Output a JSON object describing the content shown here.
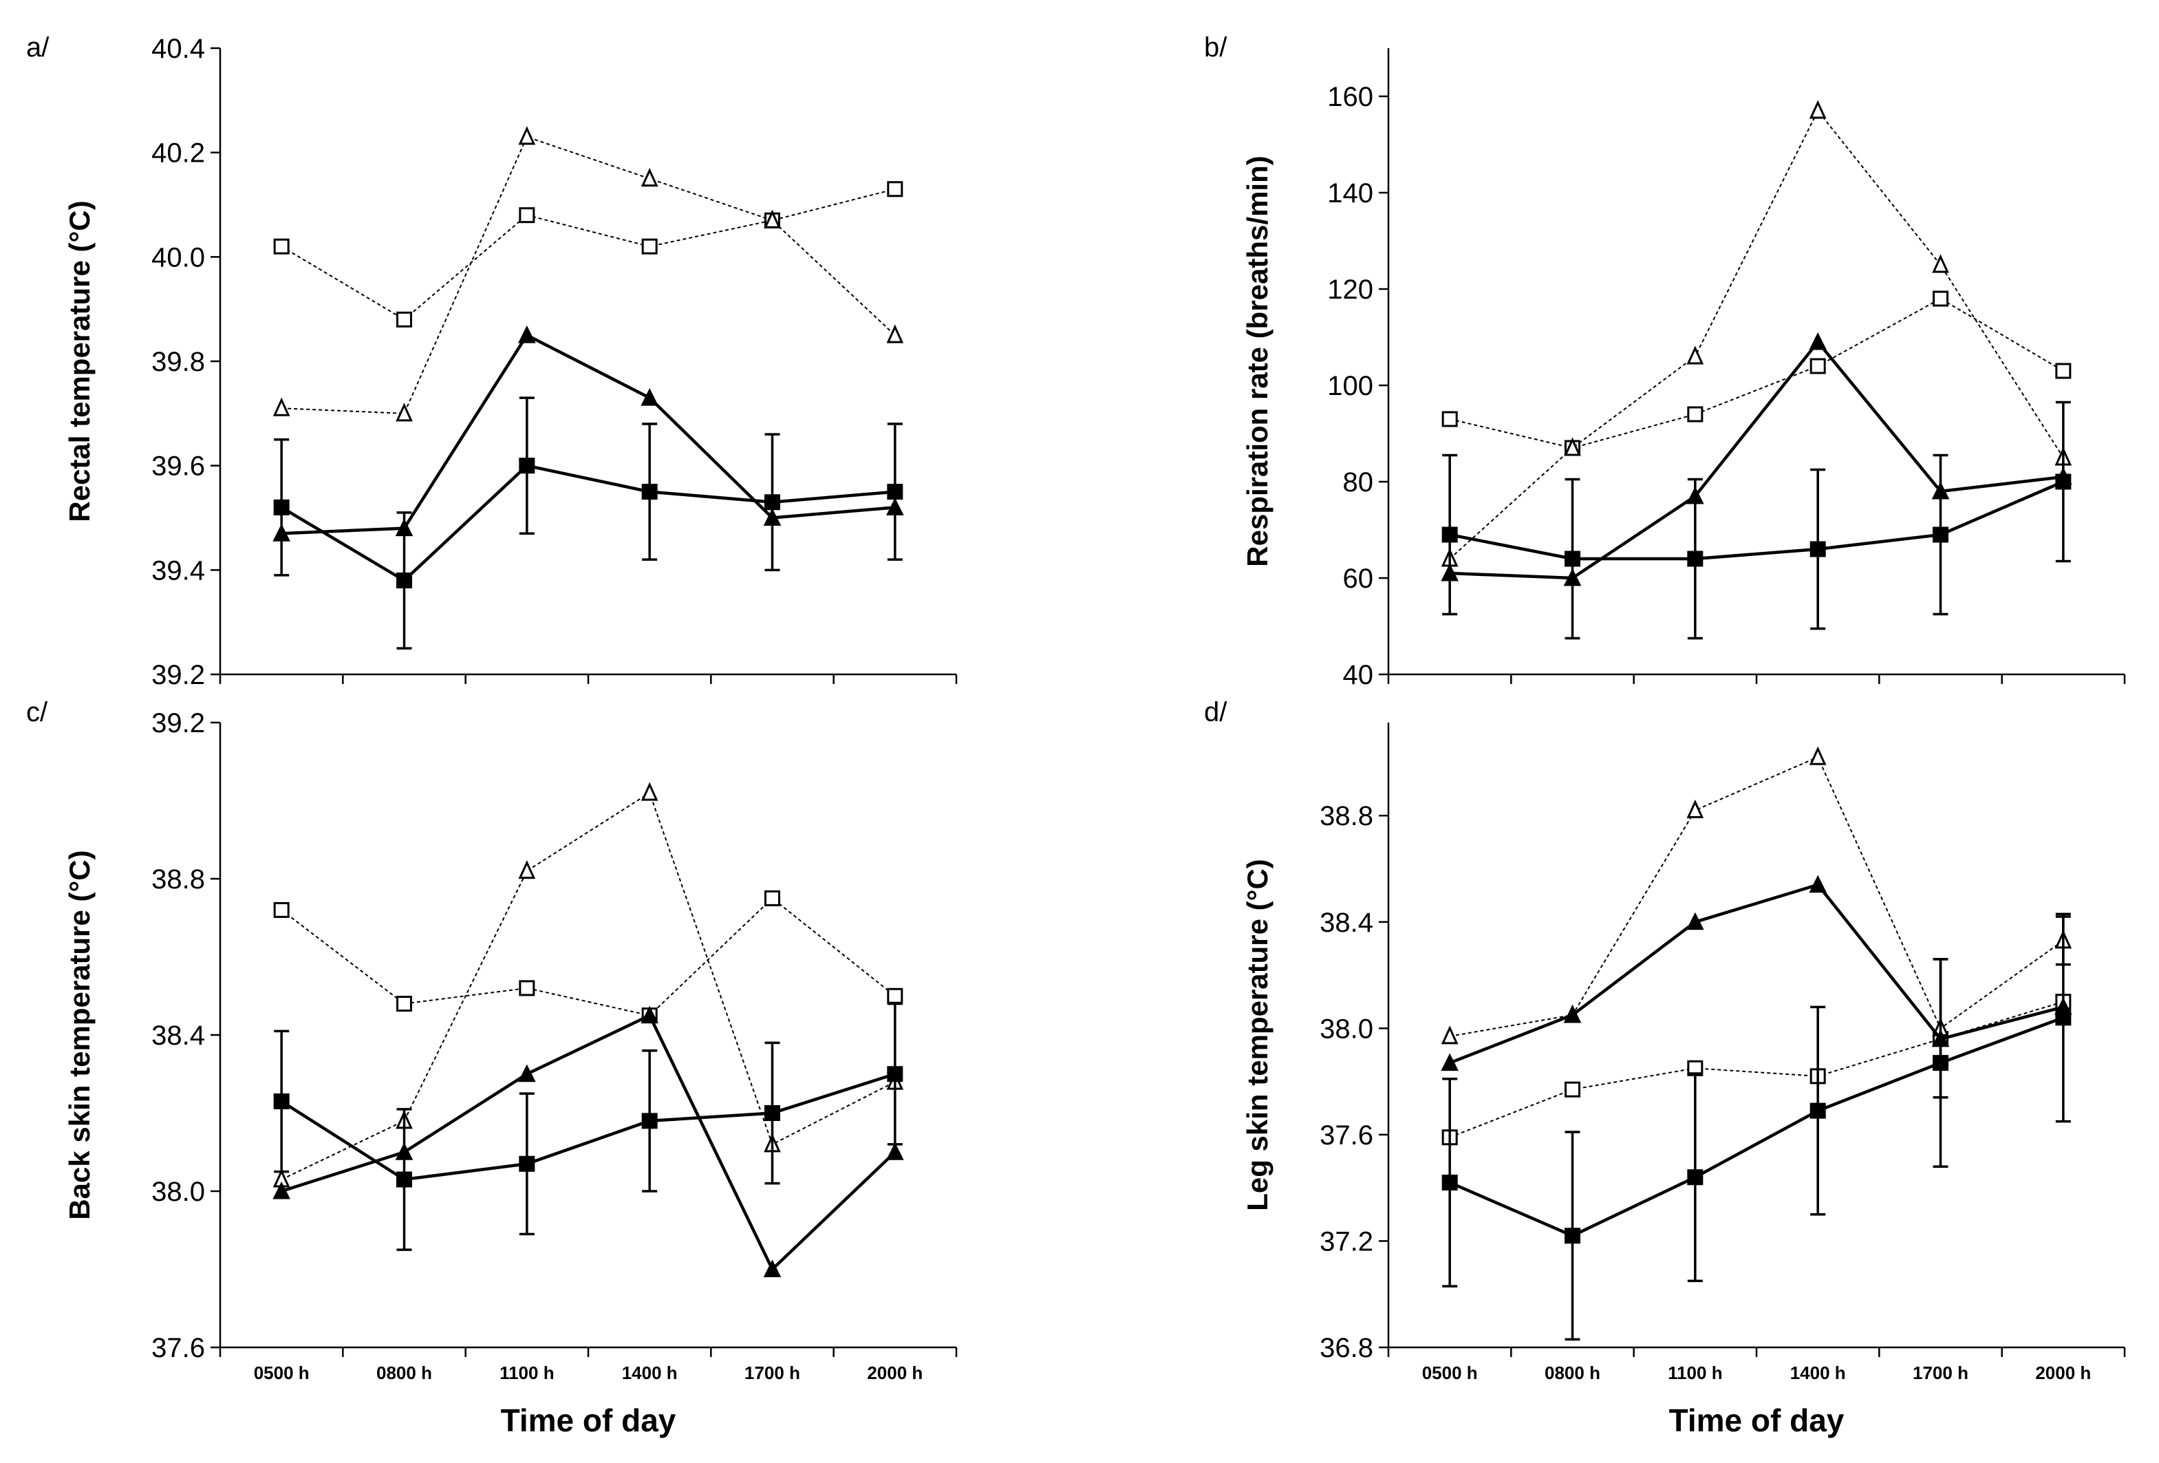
{
  "colors": {
    "ink": "#000000",
    "background": "#ffffff"
  },
  "chart_data": [
    {
      "type": "line",
      "panel_label": "a/",
      "title": "",
      "xlabel": "",
      "ylabel": "Rectal temperature (°C)",
      "categories": [
        "0500 h",
        "0800 h",
        "1100 h",
        "1400 h",
        "1700 h",
        "2000 h"
      ],
      "show_x_tick_labels": false,
      "ylim": [
        39.2,
        40.4
      ],
      "yticks": [
        39.2,
        39.4,
        39.6,
        39.8,
        40.0,
        40.2,
        40.4
      ],
      "ytick_labels": [
        "39.2",
        "39.4",
        "39.6",
        "39.8",
        "40.0",
        "40.2",
        "40.4"
      ],
      "series": [
        {
          "name": "filled square",
          "marker": "square",
          "fill": "filled",
          "line": "solid",
          "values": [
            39.52,
            39.38,
            39.6,
            39.55,
            39.53,
            39.55
          ],
          "error": [
            0.13,
            0.13,
            0.13,
            0.13,
            0.13,
            0.13
          ]
        },
        {
          "name": "filled triangle",
          "marker": "triangle",
          "fill": "filled",
          "line": "solid",
          "values": [
            39.47,
            39.48,
            39.85,
            39.73,
            39.5,
            39.52
          ]
        },
        {
          "name": "open square",
          "marker": "square",
          "fill": "open",
          "line": "dotted",
          "values": [
            40.02,
            39.88,
            40.08,
            40.02,
            40.07,
            40.13
          ]
        },
        {
          "name": "open triangle",
          "marker": "triangle",
          "fill": "open",
          "line": "dotted",
          "values": [
            39.71,
            39.7,
            40.23,
            40.15,
            40.07,
            39.85
          ]
        }
      ]
    },
    {
      "type": "line",
      "panel_label": "b/",
      "title": "",
      "xlabel": "",
      "ylabel": "Respiration rate (breaths/min)",
      "categories": [
        "0500 h",
        "0800 h",
        "1100 h",
        "1400 h",
        "1700 h",
        "2000 h"
      ],
      "show_x_tick_labels": false,
      "ylim": [
        40,
        170
      ],
      "yticks": [
        40,
        60,
        80,
        100,
        120,
        140,
        160
      ],
      "ytick_labels": [
        "40",
        "60",
        "80",
        "100",
        "120",
        "140",
        "160"
      ],
      "series": [
        {
          "name": "filled square",
          "marker": "square",
          "fill": "filled",
          "line": "solid",
          "values": [
            69,
            64,
            64,
            66,
            69,
            80
          ],
          "error": [
            16.5,
            16.5,
            16.5,
            16.5,
            16.5,
            16.5
          ]
        },
        {
          "name": "filled triangle",
          "marker": "triangle",
          "fill": "filled",
          "line": "solid",
          "values": [
            61,
            60,
            77,
            109,
            78,
            81
          ]
        },
        {
          "name": "open square",
          "marker": "square",
          "fill": "open",
          "line": "dotted",
          "values": [
            93,
            87,
            94,
            104,
            118,
            103
          ]
        },
        {
          "name": "open triangle",
          "marker": "triangle",
          "fill": "open",
          "line": "dotted",
          "values": [
            64,
            87,
            106,
            157,
            125,
            85
          ]
        }
      ]
    },
    {
      "type": "line",
      "panel_label": "c/",
      "title": "",
      "xlabel": "Time of day",
      "ylabel": "Back skin temperature (°C)",
      "categories": [
        "0500 h",
        "0800 h",
        "1100 h",
        "1400 h",
        "1700 h",
        "2000 h"
      ],
      "show_x_tick_labels": true,
      "ylim": [
        37.6,
        39.2
      ],
      "yticks": [
        37.6,
        38.0,
        38.4,
        38.8,
        39.2
      ],
      "ytick_labels": [
        "37.6",
        "38.0",
        "38.4",
        "38.8",
        "39.2"
      ],
      "series": [
        {
          "name": "filled square",
          "marker": "square",
          "fill": "filled",
          "line": "solid",
          "values": [
            38.23,
            38.03,
            38.07,
            38.18,
            38.2,
            38.3
          ],
          "error": [
            0.18,
            0.18,
            0.18,
            0.18,
            0.18,
            0.18
          ]
        },
        {
          "name": "filled triangle",
          "marker": "triangle",
          "fill": "filled",
          "line": "solid",
          "values": [
            38.0,
            38.1,
            38.3,
            38.45,
            37.8,
            38.1
          ]
        },
        {
          "name": "open square",
          "marker": "square",
          "fill": "open",
          "line": "dotted",
          "values": [
            38.72,
            38.48,
            38.52,
            38.45,
            38.75,
            38.5
          ]
        },
        {
          "name": "open triangle",
          "marker": "triangle",
          "fill": "open",
          "line": "dotted",
          "values": [
            38.03,
            38.18,
            38.82,
            39.02,
            38.12,
            38.28
          ]
        }
      ]
    },
    {
      "type": "line",
      "panel_label": "d/",
      "title": "",
      "xlabel": "Time of day",
      "ylabel": "Leg skin temperature (°C)",
      "categories": [
        "0500 h",
        "0800 h",
        "1100 h",
        "1400 h",
        "1700 h",
        "2000 h"
      ],
      "show_x_tick_labels": true,
      "ylim": [
        36.8,
        39.15
      ],
      "yticks": [
        36.8,
        37.2,
        37.6,
        38.0,
        38.4,
        38.8
      ],
      "ytick_labels": [
        "36.8",
        "37.2",
        "37.6",
        "38.0",
        "38.4",
        "38.8"
      ],
      "series": [
        {
          "name": "filled square",
          "marker": "square",
          "fill": "filled",
          "line": "solid",
          "values": [
            37.42,
            37.22,
            37.44,
            37.69,
            37.87,
            38.04
          ],
          "error": [
            0.39,
            0.39,
            0.39,
            0.39,
            0.39,
            0.39
          ]
        },
        {
          "name": "filled triangle",
          "marker": "triangle",
          "fill": "filled",
          "line": "solid",
          "values": [
            37.87,
            38.05,
            38.4,
            38.54,
            37.96,
            38.08
          ]
        },
        {
          "name": "open square",
          "marker": "square",
          "fill": "open",
          "line": "dotted",
          "values": [
            37.59,
            37.77,
            37.85,
            37.82,
            37.96,
            38.1
          ]
        },
        {
          "name": "open triangle",
          "marker": "triangle",
          "fill": "open",
          "line": "dotted",
          "values": [
            37.97,
            38.05,
            38.82,
            39.02,
            38.0,
            38.33
          ],
          "error": [
            null,
            null,
            null,
            null,
            0.26,
            0.09
          ]
        }
      ]
    }
  ]
}
